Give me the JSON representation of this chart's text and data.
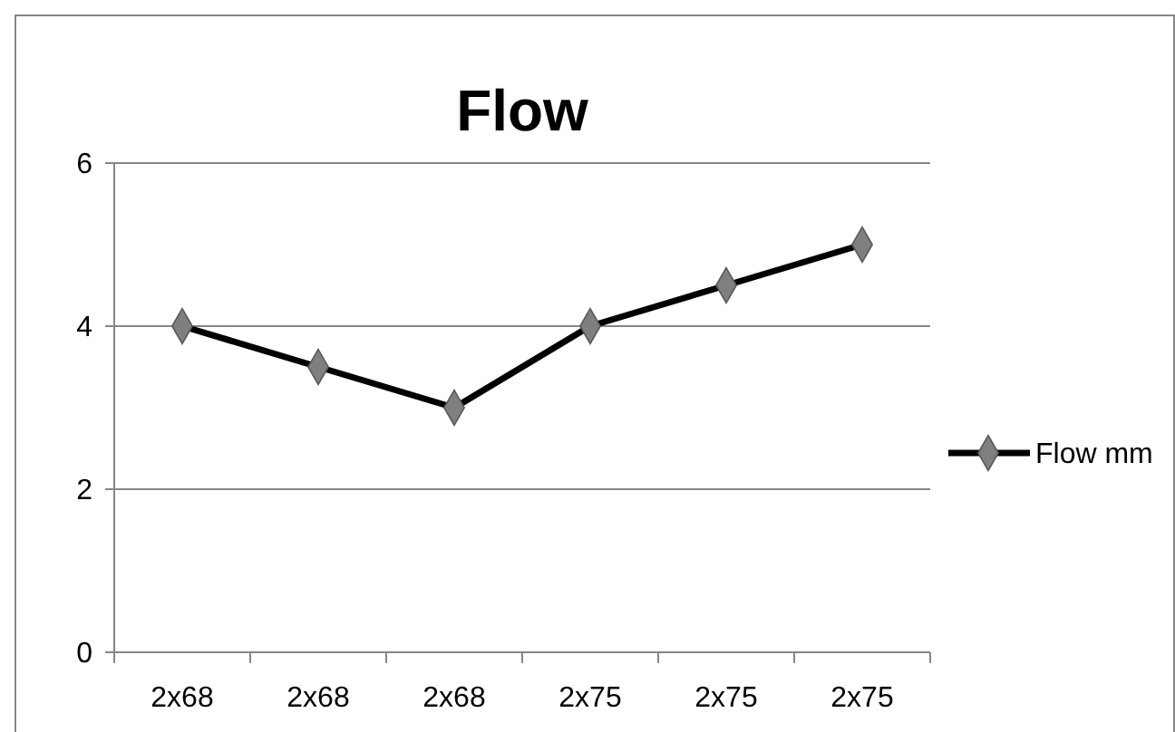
{
  "chart_data": {
    "type": "line",
    "title": "Flow",
    "categories": [
      "2x68",
      "2x68",
      "2x68",
      "2x75",
      "2x75",
      "2x75"
    ],
    "series": [
      {
        "name": "Flow mm",
        "color": "#000000",
        "values": [
          4,
          3.5,
          3,
          4,
          4.5,
          5
        ]
      }
    ],
    "ylim": [
      0,
      6
    ],
    "yticks": [
      0,
      2,
      4,
      6
    ],
    "grid": "y",
    "legend": "right",
    "marker": "diamond",
    "line_style": "solid"
  }
}
